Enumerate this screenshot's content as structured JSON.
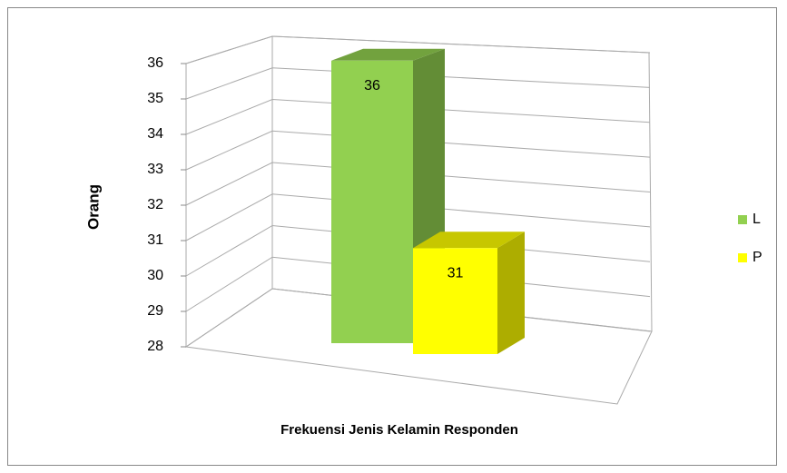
{
  "chart_data": {
    "type": "bar3d",
    "x_label": "Frekuensi Jenis Kelamin Responden",
    "y_label": "Orang",
    "categories": [
      null
    ],
    "series": [
      {
        "name": "L",
        "color": "#92d050",
        "values": [
          36
        ]
      },
      {
        "name": "P",
        "color": "#ffff00",
        "values": [
          31
        ]
      }
    ],
    "ylim": [
      28,
      36
    ],
    "yticks": [
      28,
      29,
      30,
      31,
      32,
      33,
      34,
      35,
      36
    ],
    "grid": true,
    "legend": "right",
    "data_labels": true
  }
}
